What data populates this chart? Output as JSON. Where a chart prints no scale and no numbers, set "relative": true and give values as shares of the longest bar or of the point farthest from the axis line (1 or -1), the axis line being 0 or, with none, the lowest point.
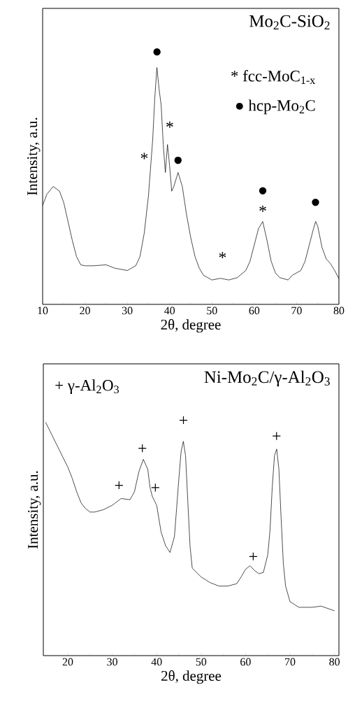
{
  "chart_data": [
    {
      "type": "line",
      "title": "Mo$_{2}$C-SiO$_{2}$",
      "xlabel": "2θ, degree",
      "ylabel": "Intensity, a.u.",
      "relative": true,
      "xlim": [
        10,
        80
      ],
      "xticks": [
        10,
        20,
        30,
        40,
        50,
        60,
        70,
        80
      ],
      "series": [
        {
          "color": "#000000",
          "x": [
            10,
            11,
            12.5,
            14,
            15,
            16,
            17,
            18,
            19,
            20,
            22,
            25,
            27,
            30,
            32,
            33,
            34,
            35,
            36,
            36.5,
            37,
            37.5,
            38,
            38.5,
            39,
            39.5,
            40,
            40.5,
            41,
            42,
            43,
            44,
            45,
            46,
            47,
            48,
            50,
            52,
            54,
            56,
            58,
            59,
            60,
            61,
            62,
            63,
            64,
            65,
            66,
            68,
            69,
            70,
            71,
            72,
            73,
            74,
            74.5,
            75,
            76,
            77,
            78,
            79,
            80
          ],
          "values": [
            0.418,
            0.465,
            0.498,
            0.478,
            0.429,
            0.35,
            0.271,
            0.202,
            0.167,
            0.163,
            0.163,
            0.167,
            0.153,
            0.143,
            0.163,
            0.202,
            0.3,
            0.458,
            0.695,
            0.872,
            1.0,
            0.911,
            0.842,
            0.675,
            0.557,
            0.675,
            0.586,
            0.478,
            0.498,
            0.557,
            0.498,
            0.379,
            0.281,
            0.202,
            0.153,
            0.123,
            0.103,
            0.11,
            0.103,
            0.113,
            0.143,
            0.182,
            0.251,
            0.32,
            0.35,
            0.271,
            0.182,
            0.133,
            0.113,
            0.103,
            0.123,
            0.133,
            0.143,
            0.182,
            0.251,
            0.32,
            0.35,
            0.33,
            0.241,
            0.192,
            0.172,
            0.143,
            0.108
          ]
        }
      ],
      "annotations": [
        "* fcc-MoC$_{1-x}$",
        "● hcp-Mo$_{2}$C",
        "●",
        "*",
        "*",
        "●",
        "*",
        "●",
        "*",
        "●"
      ]
    },
    {
      "type": "line",
      "title": "Ni-Mo$_{2}$C/γ-Al$_{2}$O$_{3}$",
      "xlabel": "2θ, degree",
      "ylabel": "Intensity, a.u.",
      "relative": true,
      "xlim": [
        14.5,
        81
      ],
      "xticks": [
        20,
        30,
        40,
        50,
        60,
        70,
        80
      ],
      "series": [
        {
          "color": "#000000",
          "x": [
            15,
            16,
            17,
            18,
            19,
            20,
            21,
            22,
            23,
            24,
            25,
            26,
            28,
            30,
            32,
            34,
            35,
            36,
            37,
            38,
            38.5,
            39,
            39.5,
            40,
            41,
            42,
            43,
            44,
            44.5,
            45,
            45.5,
            46,
            46.5,
            47,
            47.5,
            48,
            50,
            52,
            54,
            56,
            58,
            59,
            60,
            61,
            62,
            63,
            64,
            65,
            65.5,
            66,
            66.5,
            67,
            67.5,
            68,
            68.5,
            69,
            70,
            72,
            75,
            77,
            80
          ],
          "values": [
            1.0,
            0.962,
            0.923,
            0.885,
            0.846,
            0.808,
            0.76,
            0.702,
            0.654,
            0.63,
            0.615,
            0.615,
            0.625,
            0.644,
            0.673,
            0.668,
            0.702,
            0.788,
            0.841,
            0.798,
            0.721,
            0.683,
            0.663,
            0.644,
            0.529,
            0.471,
            0.442,
            0.51,
            0.635,
            0.76,
            0.875,
            0.918,
            0.856,
            0.663,
            0.471,
            0.375,
            0.337,
            0.313,
            0.298,
            0.298,
            0.308,
            0.337,
            0.37,
            0.385,
            0.365,
            0.351,
            0.356,
            0.433,
            0.538,
            0.721,
            0.856,
            0.885,
            0.798,
            0.587,
            0.394,
            0.298,
            0.231,
            0.207,
            0.207,
            0.212,
            0.192
          ]
        }
      ],
      "annotations": [
        "+ γ-Al$_{2}$O$_{3}$",
        "+",
        "+",
        "+",
        "+",
        "+",
        "+"
      ]
    }
  ]
}
